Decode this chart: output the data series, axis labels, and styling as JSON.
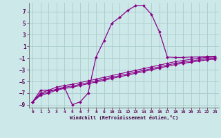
{
  "xlabel": "Windchill (Refroidissement éolien,°C)",
  "background_color": "#cce8e8",
  "grid_color": "#aacccc",
  "line_color": "#880088",
  "xlim": [
    -0.5,
    23.5
  ],
  "ylim": [
    -9.5,
    8.5
  ],
  "xticks": [
    0,
    1,
    2,
    3,
    4,
    5,
    6,
    7,
    8,
    9,
    10,
    11,
    12,
    13,
    14,
    15,
    16,
    17,
    18,
    19,
    20,
    21,
    22,
    23
  ],
  "yticks": [
    -9,
    -7,
    -5,
    -3,
    -1,
    1,
    3,
    5,
    7
  ],
  "x": [
    0,
    1,
    2,
    3,
    4,
    5,
    6,
    7,
    8,
    9,
    10,
    11,
    12,
    13,
    14,
    15,
    16,
    17,
    18,
    19,
    20,
    21,
    22,
    23
  ],
  "y_main": [
    -8.5,
    -6.5,
    -6.5,
    -6.5,
    -6.0,
    -9.0,
    -8.5,
    -7.0,
    -0.8,
    2.0,
    5.0,
    6.0,
    7.2,
    8.0,
    8.0,
    6.5,
    3.5,
    -0.8,
    -0.9,
    -0.9,
    -0.8,
    -0.8,
    -0.7,
    -0.7
  ],
  "y_lin1": [
    -8.5,
    -7.0,
    -6.5,
    -6.0,
    -5.7,
    -5.5,
    -5.2,
    -4.9,
    -4.6,
    -4.3,
    -4.0,
    -3.7,
    -3.4,
    -3.1,
    -2.8,
    -2.5,
    -2.2,
    -1.9,
    -1.6,
    -1.4,
    -1.2,
    -1.0,
    -0.9,
    -0.8
  ],
  "y_lin2": [
    -8.5,
    -7.2,
    -6.8,
    -6.3,
    -6.0,
    -5.8,
    -5.5,
    -5.2,
    -4.9,
    -4.6,
    -4.3,
    -4.0,
    -3.7,
    -3.4,
    -3.1,
    -2.8,
    -2.5,
    -2.2,
    -1.9,
    -1.7,
    -1.5,
    -1.3,
    -1.1,
    -1.0
  ],
  "y_lin3": [
    -8.5,
    -7.4,
    -7.0,
    -6.5,
    -6.2,
    -6.0,
    -5.7,
    -5.4,
    -5.1,
    -4.8,
    -4.5,
    -4.2,
    -3.9,
    -3.6,
    -3.3,
    -3.0,
    -2.7,
    -2.4,
    -2.1,
    -1.9,
    -1.7,
    -1.5,
    -1.3,
    -1.2
  ]
}
